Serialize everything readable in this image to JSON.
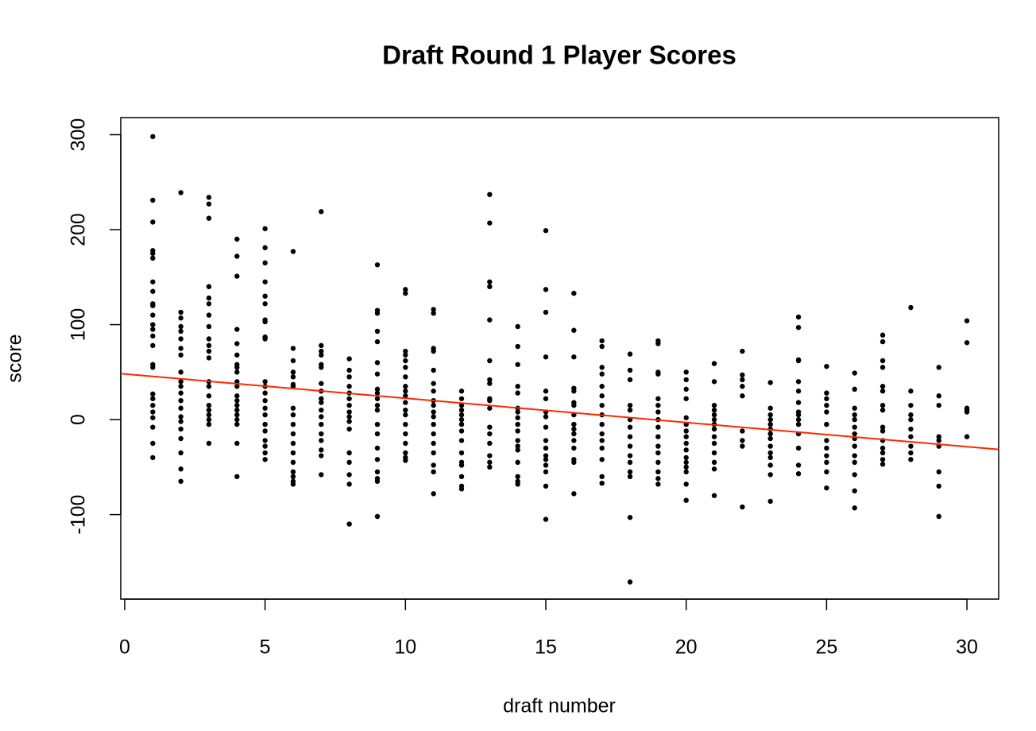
{
  "chart_data": {
    "type": "scatter",
    "title": "Draft Round 1 Player Scores",
    "x_label": "draft number",
    "y_label": "score",
    "xlim": [
      -0.14,
      31.13
    ],
    "ylim": [
      -189,
      318
    ],
    "xticks": [
      0,
      5,
      10,
      15,
      20,
      25,
      30
    ],
    "yticks": [
      -100,
      0,
      100,
      200,
      300
    ],
    "color": "#000000",
    "grid": false,
    "regression": {
      "intercept": 48,
      "slope": -2.55,
      "color": "#ff2600"
    },
    "x": [
      1,
      2,
      3,
      4,
      5,
      6,
      7,
      8,
      9,
      10,
      11,
      12,
      13,
      14,
      15,
      16,
      17,
      18,
      19,
      20,
      21,
      22,
      23,
      24,
      25,
      26,
      27,
      28,
      29,
      30
    ],
    "y": [
      [
        298,
        231,
        208,
        178,
        175,
        170,
        145,
        135,
        122,
        120,
        110,
        100,
        95,
        88,
        78,
        58,
        55,
        27,
        22,
        15,
        8,
        2,
        -8,
        -25,
        -40
      ],
      [
        239,
        113,
        107,
        98,
        93,
        85,
        75,
        68,
        50,
        40,
        35,
        28,
        20,
        12,
        3,
        -2,
        -10,
        -20,
        -35,
        -52,
        -65
      ],
      [
        234,
        227,
        212,
        140,
        128,
        122,
        110,
        98,
        85,
        78,
        72,
        65,
        40,
        35,
        25,
        15,
        10,
        5,
        0,
        -5,
        -25
      ],
      [
        190,
        172,
        151,
        95,
        80,
        68,
        58,
        55,
        50,
        40,
        35,
        25,
        20,
        15,
        10,
        5,
        0,
        -5,
        -25,
        -60
      ],
      [
        201,
        181,
        165,
        145,
        130,
        122,
        105,
        103,
        87,
        85,
        40,
        35,
        28,
        20,
        12,
        5,
        -5,
        -12,
        -22,
        -28,
        -35,
        -42
      ],
      [
        177,
        75,
        62,
        50,
        45,
        37,
        35,
        12,
        5,
        -5,
        -15,
        -25,
        -35,
        -45,
        -55,
        -60,
        -65,
        -68
      ],
      [
        219,
        78,
        72,
        68,
        58,
        55,
        38,
        30,
        22,
        18,
        10,
        3,
        -5,
        -15,
        -22,
        -32,
        -38,
        -58
      ],
      [
        64,
        52,
        45,
        35,
        28,
        22,
        15,
        8,
        3,
        -2,
        -10,
        -35,
        -45,
        -58,
        -68,
        -110
      ],
      [
        163,
        115,
        112,
        93,
        82,
        60,
        48,
        32,
        28,
        22,
        15,
        10,
        -5,
        -15,
        -30,
        -42,
        -55,
        -62,
        -65,
        -102
      ],
      [
        137,
        133,
        72,
        68,
        62,
        55,
        45,
        35,
        30,
        25,
        18,
        10,
        5,
        -5,
        -15,
        -25,
        -35,
        -40,
        -43
      ],
      [
        116,
        112,
        75,
        72,
        52,
        38,
        30,
        20,
        15,
        8,
        3,
        -5,
        -15,
        -25,
        -35,
        -48,
        -55,
        -78
      ],
      [
        30,
        22,
        15,
        10,
        5,
        0,
        -5,
        -12,
        -22,
        -35,
        -45,
        -48,
        -60,
        -70,
        -73
      ],
      [
        237,
        207,
        145,
        140,
        105,
        62,
        42,
        38,
        22,
        20,
        12,
        -8,
        -15,
        -25,
        -38,
        -45,
        -50
      ],
      [
        98,
        77,
        58,
        35,
        28,
        12,
        8,
        2,
        -5,
        -12,
        -22,
        -28,
        -32,
        -45,
        -60,
        -65,
        -68
      ],
      [
        199,
        137,
        113,
        66,
        30,
        22,
        8,
        3,
        -8,
        -22,
        -30,
        -38,
        -42,
        -48,
        -55,
        -70,
        -105
      ],
      [
        133,
        94,
        66,
        33,
        30,
        18,
        15,
        5,
        -5,
        -10,
        -15,
        -22,
        -30,
        -42,
        -45,
        -78
      ],
      [
        83,
        77,
        55,
        48,
        35,
        25,
        15,
        5,
        -5,
        -15,
        -22,
        -30,
        -42,
        -60,
        -67
      ],
      [
        69,
        52,
        42,
        15,
        10,
        0,
        -8,
        -18,
        -28,
        -38,
        -45,
        -55,
        -60,
        -103,
        -171
      ],
      [
        83,
        80,
        50,
        48,
        22,
        15,
        8,
        0,
        -8,
        -18,
        -28,
        -35,
        -45,
        -55,
        -62,
        -68
      ],
      [
        50,
        42,
        32,
        22,
        2,
        -5,
        -12,
        -18,
        -25,
        -32,
        -40,
        -45,
        -50,
        -55,
        -68,
        -85
      ],
      [
        59,
        40,
        15,
        10,
        5,
        0,
        -5,
        -10,
        -18,
        -25,
        -35,
        -45,
        -52,
        -80
      ],
      [
        72,
        47,
        42,
        35,
        25,
        -12,
        -22,
        -28,
        -92
      ],
      [
        39,
        12,
        5,
        0,
        -5,
        -10,
        -15,
        -20,
        -28,
        -35,
        -40,
        -48,
        -58,
        -86
      ],
      [
        108,
        97,
        63,
        62,
        40,
        30,
        18,
        8,
        5,
        0,
        -5,
        -15,
        -30,
        -48,
        -57
      ],
      [
        56,
        28,
        22,
        15,
        8,
        -5,
        -22,
        -30,
        -38,
        -45,
        -55,
        -72
      ],
      [
        49,
        32,
        12,
        5,
        0,
        -8,
        -15,
        -20,
        -28,
        -38,
        -45,
        -58,
        -75,
        -93
      ],
      [
        89,
        82,
        62,
        55,
        35,
        30,
        15,
        10,
        -8,
        -12,
        -22,
        -30,
        -35,
        -42,
        -47
      ],
      [
        118,
        30,
        15,
        5,
        0,
        -10,
        -18,
        -28,
        -35,
        -42
      ],
      [
        55,
        25,
        15,
        -18,
        -22,
        -28,
        -55,
        -70,
        -102
      ],
      [
        104,
        81,
        12,
        10,
        8,
        -18
      ]
    ]
  }
}
